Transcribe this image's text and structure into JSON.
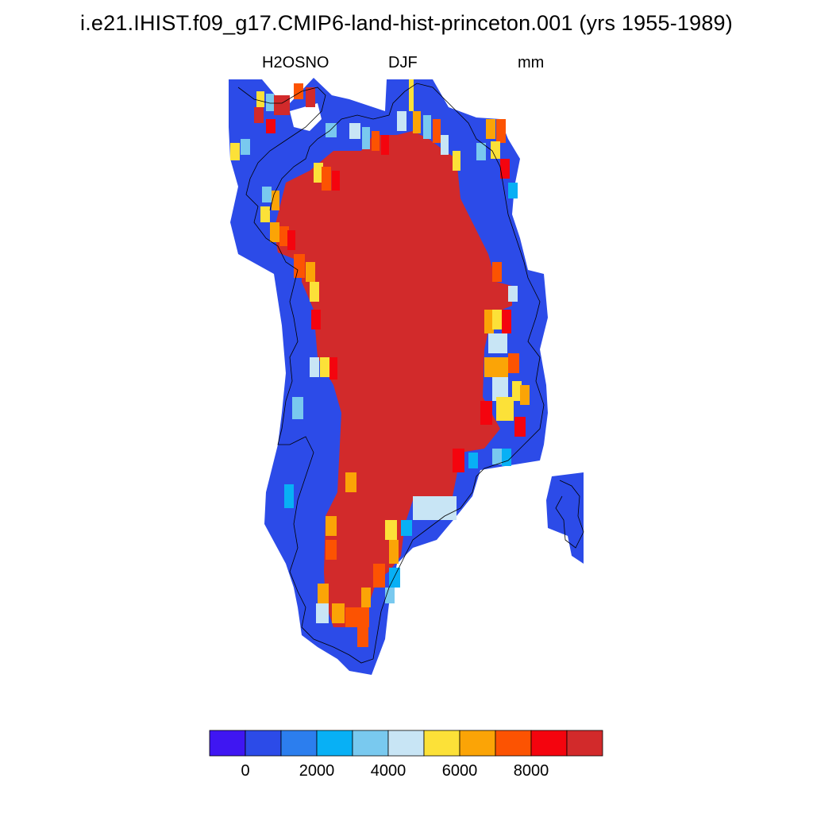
{
  "title": "i.e21.IHIST.f09_g17.CMIP6-land-hist-princeton.001 (yrs 1955-1989)",
  "subtitle": {
    "variable": "H2OSNO",
    "season": "DJF",
    "units": "mm"
  },
  "colorbar": {
    "colors": [
      "#3F16F2",
      "#2C4BE8",
      "#2C7EEE",
      "#08B0F5",
      "#79C9EF",
      "#C8E5F5",
      "#FCE138",
      "#FBA406",
      "#FC5302",
      "#F4040E",
      "#D22A2B"
    ],
    "tick_labels": [
      "0",
      "2000",
      "4000",
      "6000",
      "8000"
    ],
    "tick_values": [
      0,
      2000,
      4000,
      6000,
      8000
    ]
  },
  "map": {
    "region": "Greenland",
    "field": "snow water equivalent (winter mean)",
    "land_color": "#D22A2B",
    "coast_color": "#2C4BE8"
  }
}
